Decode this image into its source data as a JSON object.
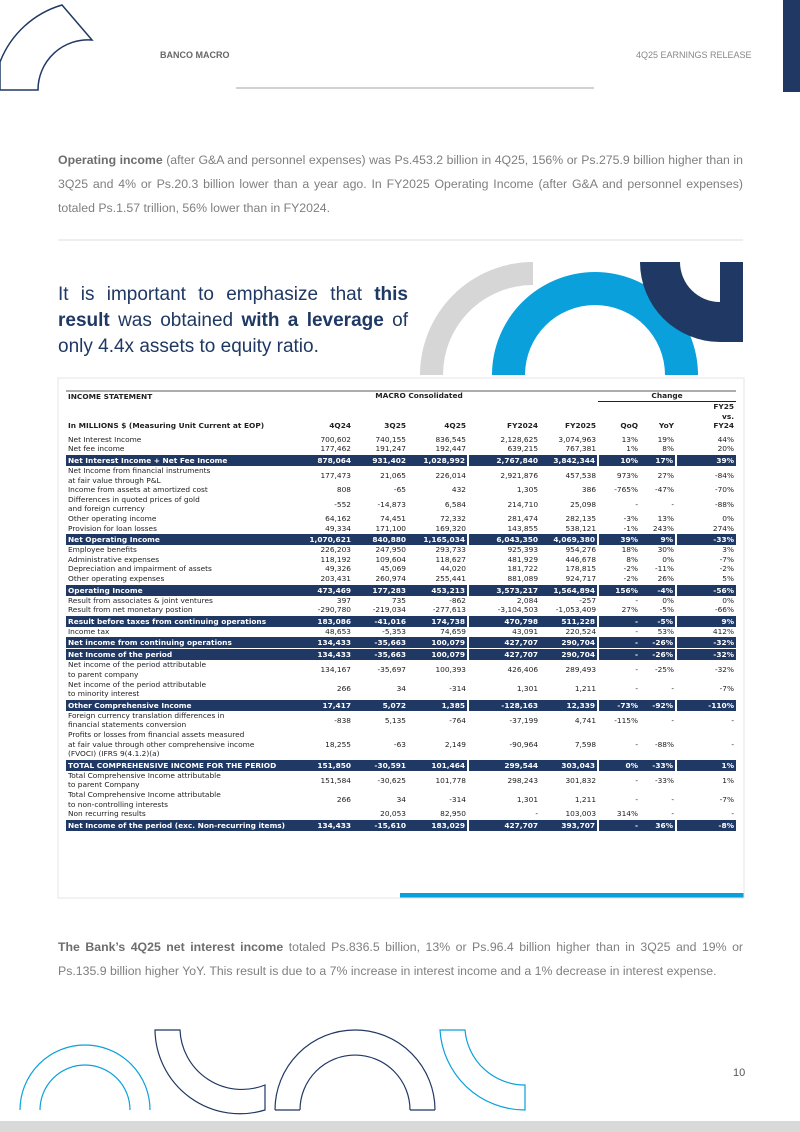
{
  "header": {
    "bank": "BANCO MACRO",
    "release": "4Q25 EARNINGS RELEASE"
  },
  "paragraph1": {
    "lead": "Operating income",
    "text": " (after G&A and personnel expenses) was Ps.453.2 billion in 4Q25, 156% or Ps.275.9 billion higher than in 3Q25 and 4% or Ps.20.3 billion lower than a year ago. In FY2025 Operating Income (after G&A and personnel expenses) totaled Ps.1.57 trillion, 56% lower than in FY2024."
  },
  "quote": [
    "It is important to emphasize that ",
    "this result",
    " was obtained ",
    "with a leverage",
    " of only 4.4x assets to equity ratio."
  ],
  "table": {
    "title": "INCOME STATEMENT",
    "group": "MACRO Consolidated",
    "change": "Change",
    "unit": "In MILLIONS $ (Measuring Unit Current at EOP)",
    "columns": [
      "4Q24",
      "3Q25",
      "4Q25",
      "FY2024",
      "FY2025",
      "QoQ",
      "YoY",
      "FY25\nvs.\nFY24"
    ],
    "rows": [
      {
        "label": "Net Interest Income",
        "values": [
          "700,602",
          "740,155",
          "836,545",
          "2,128,625",
          "3,074,963",
          "13%",
          "19%",
          "44%"
        ]
      },
      {
        "label": "Net fee income",
        "values": [
          "177,462",
          "191,247",
          "192,447",
          "639,215",
          "767,381",
          "1%",
          "8%",
          "20%"
        ]
      },
      {
        "label": "Net Interest Income + Net Fee Income",
        "fill": "#1f3864",
        "values": [
          "878,064",
          "931,402",
          "1,028,992",
          "2,767,840",
          "3,842,344",
          "10%",
          "17%",
          "39%"
        ]
      },
      {
        "label": "Net Income from financial instruments\n at fair value through P&L",
        "values": [
          "177,473",
          "21,065",
          "226,014",
          "2,921,876",
          "457,538",
          "973%",
          "27%",
          "-84%"
        ]
      },
      {
        "label": "Income from assets at amortized cost",
        "values": [
          "808",
          "-65",
          "432",
          "1,305",
          "386",
          "-765%",
          "-47%",
          "-70%"
        ]
      },
      {
        "label": "Differences in quoted prices of gold\n and foreign currency",
        "values": [
          "-552",
          "-14,873",
          "6,584",
          "214,710",
          "25,098",
          "-",
          "-",
          "-88%"
        ]
      },
      {
        "label": "Other operating income",
        "values": [
          "64,162",
          "74,451",
          "72,332",
          "281,474",
          "282,135",
          "-3%",
          "13%",
          "0%"
        ]
      },
      {
        "label": "Provision for loan losses",
        "values": [
          "49,334",
          "171,100",
          "169,320",
          "143,855",
          "538,121",
          "-1%",
          "243%",
          "274%"
        ]
      },
      {
        "label": "Net Operating Income",
        "fill": "#1f3864",
        "values": [
          "1,070,621",
          "840,880",
          "1,165,034",
          "6,043,350",
          "4,069,380",
          "39%",
          "9%",
          "-33%"
        ]
      },
      {
        "label": "Employee benefits",
        "values": [
          "226,203",
          "247,950",
          "293,733",
          "925,393",
          "954,276",
          "18%",
          "30%",
          "3%"
        ]
      },
      {
        "label": "Administrative expenses",
        "values": [
          "118,192",
          "109,604",
          "118,627",
          "481,929",
          "446,678",
          "8%",
          "0%",
          "-7%"
        ]
      },
      {
        "label": "Depreciation and impairment of assets",
        "values": [
          "49,326",
          "45,069",
          "44,020",
          "181,722",
          "178,815",
          "-2%",
          "-11%",
          "-2%"
        ]
      },
      {
        "label": "Other operating expenses",
        "values": [
          "203,431",
          "260,974",
          "255,441",
          "881,089",
          "924,717",
          "-2%",
          "26%",
          "5%"
        ]
      },
      {
        "label": "Operating Income",
        "fill": "#1f3864",
        "values": [
          "473,469",
          "177,283",
          "453,213",
          "3,573,217",
          "1,564,894",
          "156%",
          "-4%",
          "-56%"
        ]
      },
      {
        "label": "Result from associates & joint ventures",
        "values": [
          "397",
          "735",
          "-862",
          "2,084",
          "-257",
          "-",
          "0%",
          "0%"
        ]
      },
      {
        "label": "Result from net monetary postion",
        "values": [
          "-290,780",
          "-219,034",
          "-277,613",
          "-3,104,503",
          "-1,053,409",
          "27%",
          "-5%",
          "-66%"
        ]
      },
      {
        "label": "Result before taxes from continuing operations",
        "fill": "#1f3864",
        "values": [
          "183,086",
          "-41,016",
          "174,738",
          "470,798",
          "511,228",
          "-",
          "-5%",
          "9%"
        ]
      },
      {
        "label": "Income tax",
        "values": [
          "48,653",
          "-5,353",
          "74,659",
          "43,091",
          "220,524",
          "-",
          "53%",
          "412%"
        ]
      },
      {
        "label": "Net income from continuing operations",
        "fill": "#1f3864",
        "values": [
          "134,433",
          "-35,663",
          "100,079",
          "427,707",
          "290,704",
          "-",
          "-26%",
          "-32%"
        ]
      },
      {
        "label": "Net Income of the period",
        "fill": "#1f3864",
        "values": [
          "134,433",
          "-35,663",
          "100,079",
          "427,707",
          "290,704",
          "-",
          "-26%",
          "-32%"
        ]
      },
      {
        "label": "Net income of the period attributable\n to parent company",
        "values": [
          "134,167",
          "-35,697",
          "100,393",
          "426,406",
          "289,493",
          "-",
          "-25%",
          "-32%"
        ]
      },
      {
        "label": "Net income of the period attributable\n to minority interest",
        "values": [
          "266",
          "34",
          "-314",
          "1,301",
          "1,211",
          "-",
          "-",
          "-7%"
        ]
      },
      {
        "label": "Other Comprehensive Income",
        "fill": "#1f3864",
        "values": [
          "17,417",
          "5,072",
          "1,385",
          "-128,163",
          "12,339",
          "-73%",
          "-92%",
          "-110%"
        ]
      },
      {
        "label": "Foreign currency translation differences in\nfinancial statements conversion",
        "values": [
          "-838",
          "5,135",
          "-764",
          "-37,199",
          "4,741",
          "-115%",
          "-",
          "-"
        ]
      },
      {
        "label": "Profits or losses from financial assets measured\nat fair value  through other comprehensive income\n(FVOCI)  (IFRS 9(4.1.2)(a)",
        "values": [
          "18,255",
          "-63",
          "2,149",
          "-90,964",
          "7,598",
          "-",
          "-88%",
          "-"
        ]
      },
      {
        "label": "TOTAL COMPREHENSIVE INCOME FOR THE PERIOD",
        "fill": "#1f3864",
        "values": [
          "151,850",
          "-30,591",
          "101,464",
          "299,544",
          "303,043",
          "0%",
          "-33%",
          "1%"
        ]
      },
      {
        "label": "Total Comprehensive Income attributable\nto parent Company",
        "values": [
          "151,584",
          "-30,625",
          "101,778",
          "298,243",
          "301,832",
          "-",
          "-33%",
          "1%"
        ]
      },
      {
        "label": "Total Comprehensive Income attributable\nto non-controlling interests",
        "values": [
          "266",
          "34",
          "-314",
          "1,301",
          "1,211",
          "-",
          "-",
          "-7%"
        ]
      },
      {
        "label": "Non recurring results",
        "values": [
          null,
          "20,053",
          "82,950",
          "-",
          "103,003",
          "314%",
          "-",
          "-"
        ]
      },
      {
        "label": "Net Income of the period (exc. Non-recurring items)",
        "fill": "#1f3864",
        "values": [
          "134,433",
          "-15,610",
          "183,029",
          "427,707",
          "393,707",
          "-",
          "36%",
          "-8%"
        ]
      }
    ]
  },
  "paragraph2": {
    "lead": "The Bank’s 4Q25 net interest income",
    "text": " totaled Ps.836.5 billion, 13% or Ps.96.4 billion higher than in 3Q25 and 19% or Ps.135.9 billion higher YoY. This result is due to a 7% increase in interest income and a 1% decrease in interest expense."
  },
  "page_number": "10"
}
